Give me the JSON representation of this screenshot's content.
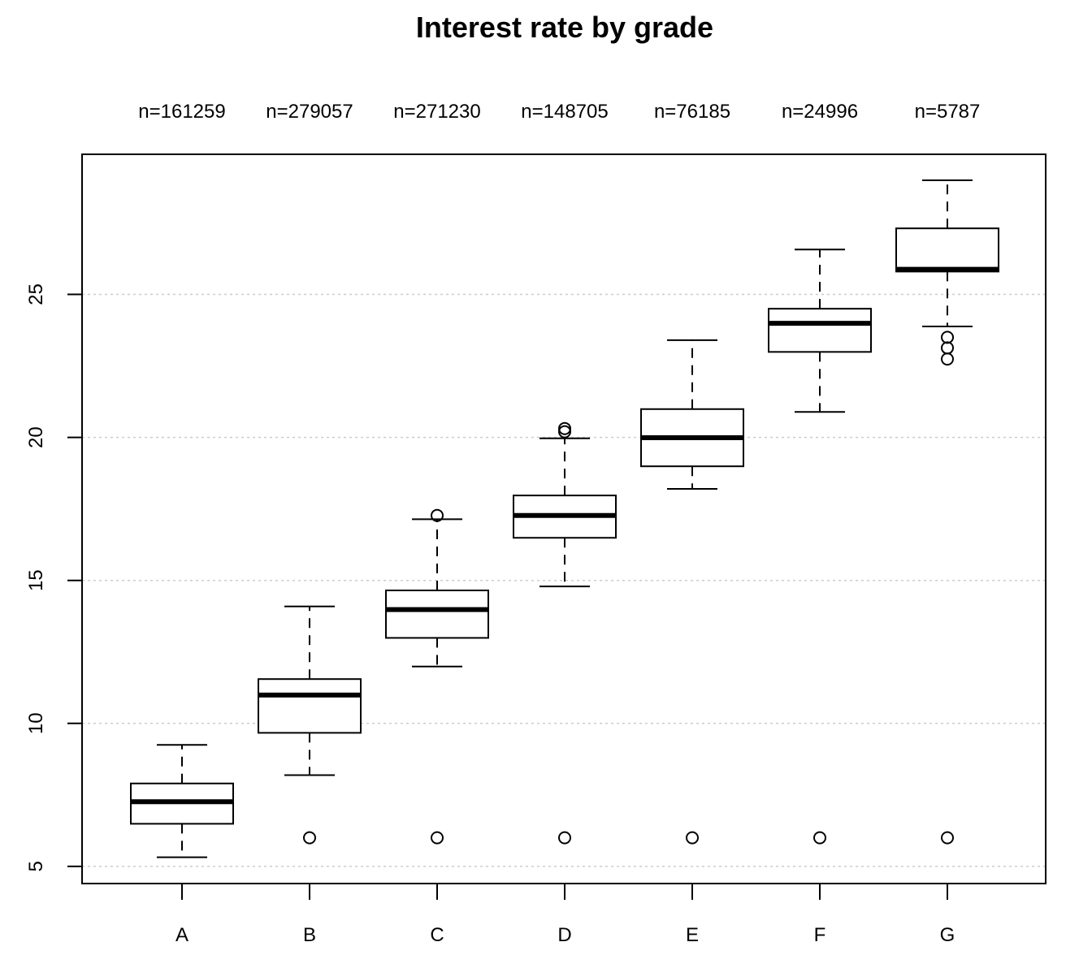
{
  "chart_data": {
    "type": "box",
    "title": "Interest rate by grade",
    "xlabel": "",
    "ylabel": "",
    "ylim": [
      4.4,
      29.9
    ],
    "yticks": [
      5,
      10,
      15,
      20,
      25
    ],
    "y_tick_labels": [
      "5",
      "10",
      "15",
      "20",
      "25"
    ],
    "grid": "horizontal dotted",
    "categories": [
      "A",
      "B",
      "C",
      "D",
      "E",
      "F",
      "G"
    ],
    "counts": [
      "n=161259",
      "n=279057",
      "n=271230",
      "n=148705",
      "n=76185",
      "n=24996",
      "n=5787"
    ],
    "boxes": [
      {
        "category": "A",
        "whisker_low": 5.32,
        "q1": 6.49,
        "median": 7.26,
        "q3": 7.9,
        "whisker_high": 9.25,
        "outliers": []
      },
      {
        "category": "B",
        "whisker_low": 8.19,
        "q1": 9.67,
        "median": 10.99,
        "q3": 11.55,
        "whisker_high": 14.09,
        "outliers": [
          6.0
        ]
      },
      {
        "category": "C",
        "whisker_low": 11.99,
        "q1": 12.99,
        "median": 13.98,
        "q3": 14.65,
        "whisker_high": 17.14,
        "outliers": [
          6.0,
          17.27
        ]
      },
      {
        "category": "D",
        "whisker_low": 14.79,
        "q1": 16.49,
        "median": 17.27,
        "q3": 17.97,
        "whisker_high": 19.97,
        "outliers": [
          6.0,
          20.2,
          20.31
        ]
      },
      {
        "category": "E",
        "whisker_low": 18.2,
        "q1": 18.99,
        "median": 19.99,
        "q3": 20.99,
        "whisker_high": 23.4,
        "outliers": [
          6.0
        ]
      },
      {
        "category": "F",
        "whisker_low": 20.89,
        "q1": 22.99,
        "median": 23.99,
        "q3": 24.5,
        "whisker_high": 26.57,
        "outliers": [
          6.0
        ]
      },
      {
        "category": "G",
        "whisker_low": 23.88,
        "q1": 25.8,
        "median": 25.88,
        "q3": 27.31,
        "whisker_high": 28.99,
        "outliers": [
          6.0,
          22.74,
          23.13,
          23.5
        ]
      }
    ]
  }
}
